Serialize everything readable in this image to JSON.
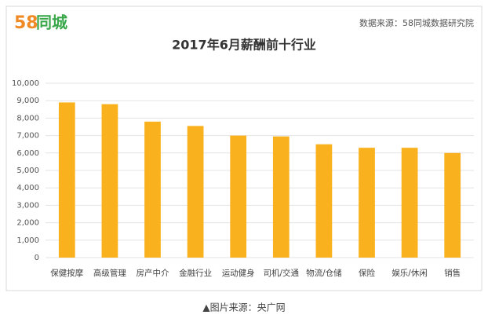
{
  "logo": {
    "number": "58",
    "text": "同城"
  },
  "source": "数据来源：58同城数据研究院",
  "caption": "▲图片来源：央广网",
  "chart_data": {
    "type": "bar",
    "title": "2017年6月薪酬前十行业",
    "categories": [
      "保健按摩",
      "高级管理",
      "房产中介",
      "金融行业",
      "运动健身",
      "司机/交通",
      "物流/仓储",
      "保险",
      "娱乐/休闲",
      "销售"
    ],
    "values": [
      8900,
      8800,
      7800,
      7550,
      7000,
      6950,
      6500,
      6300,
      6300,
      6000
    ],
    "color": "#f9b21d",
    "ylim": [
      0,
      10000
    ],
    "yticks": [
      0,
      {
        "value": 1000,
        "label": "1,000"
      },
      {
        "value": 2000,
        "label": "2,000"
      },
      {
        "value": 3000,
        "label": "3,000"
      },
      {
        "value": 4000,
        "label": "4,000"
      },
      {
        "value": 5000,
        "label": "5,000"
      },
      {
        "value": 6000,
        "label": "6,000"
      },
      {
        "value": 7000,
        "label": "7,000"
      },
      {
        "value": 8000,
        "label": "8,000"
      },
      {
        "value": 9000,
        "label": "9,000"
      },
      {
        "value": 10000,
        "label": "10,000"
      }
    ],
    "grid": true
  }
}
